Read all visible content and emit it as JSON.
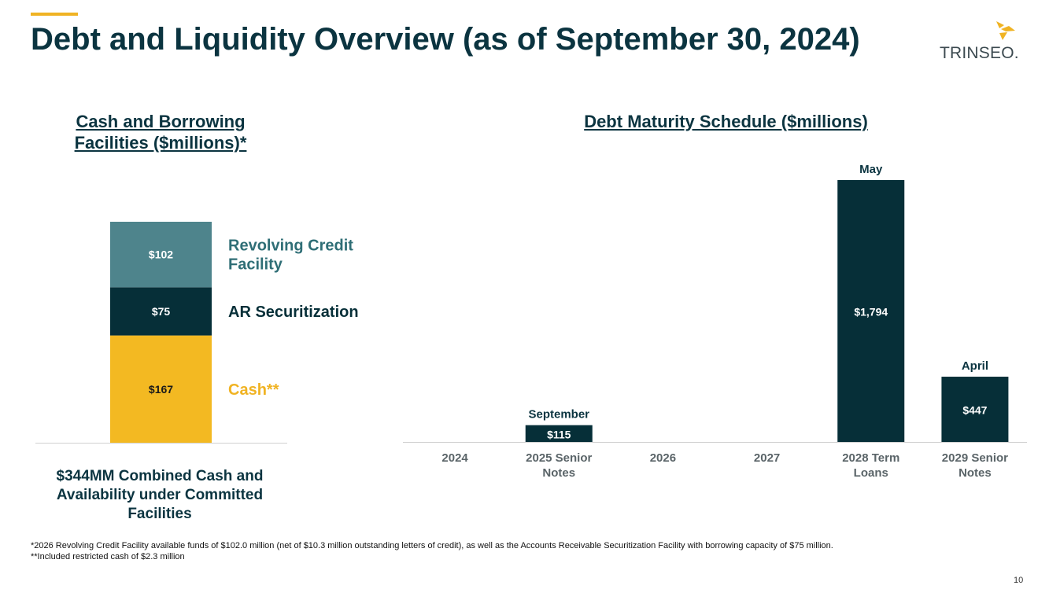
{
  "header": {
    "title": "Debt and Liquidity Overview (as of September 30, 2024)",
    "logo_text": "TRINSEO."
  },
  "colors": {
    "accent": "#f0b323",
    "dark_teal": "#062f38",
    "mid_teal": "#4e848c",
    "gold": "#f3b922"
  },
  "left_panel": {
    "title": "Cash and Borrowing Facilities ($millions)*",
    "combined_label": "$344MM Combined Cash and Availability under Committed Facilities"
  },
  "right_panel": {
    "title": "Debt Maturity Schedule ($millions)"
  },
  "chart_data": [
    {
      "type": "bar",
      "stacked": true,
      "title": "Cash and Borrowing Facilities ($millions)*",
      "categories": [
        ""
      ],
      "series": [
        {
          "name": "Cash**",
          "values": [
            167
          ],
          "label": "$167",
          "color": "#f3b922",
          "text_color": "#f0b323"
        },
        {
          "name": "AR Securitization",
          "values": [
            75
          ],
          "label": "$75",
          "color": "#062f38",
          "text_color": "#062f38"
        },
        {
          "name": "Revolving Credit Facility",
          "values": [
            102
          ],
          "label": "$102",
          "color": "#4e848c",
          "text_color": "#2f6e76"
        }
      ],
      "total": 344,
      "legend": "right"
    },
    {
      "type": "bar",
      "title": "Debt Maturity Schedule ($millions)",
      "categories": [
        "2024",
        "2025 Senior Notes",
        "2026",
        "2027",
        "2028 Term Loans",
        "2029 Senior Notes"
      ],
      "values": [
        0,
        115,
        0,
        0,
        1794,
        447
      ],
      "value_labels": [
        "",
        "$115",
        "",
        "",
        "$1,794",
        "$447"
      ],
      "annotations": [
        "",
        "September",
        "",
        "",
        "May",
        "April"
      ],
      "ylim": [
        0,
        1794
      ],
      "grid": false,
      "color": "#062f38"
    }
  ],
  "footnotes": {
    "line1": "*2026 Revolving Credit Facility available funds of $102.0 million (net of $10.3 million outstanding letters of credit), as well as the Accounts Receivable Securitization Facility with borrowing capacity of $75 million.",
    "line2": "**Included restricted cash of $2.3 million"
  },
  "page_number": "10"
}
